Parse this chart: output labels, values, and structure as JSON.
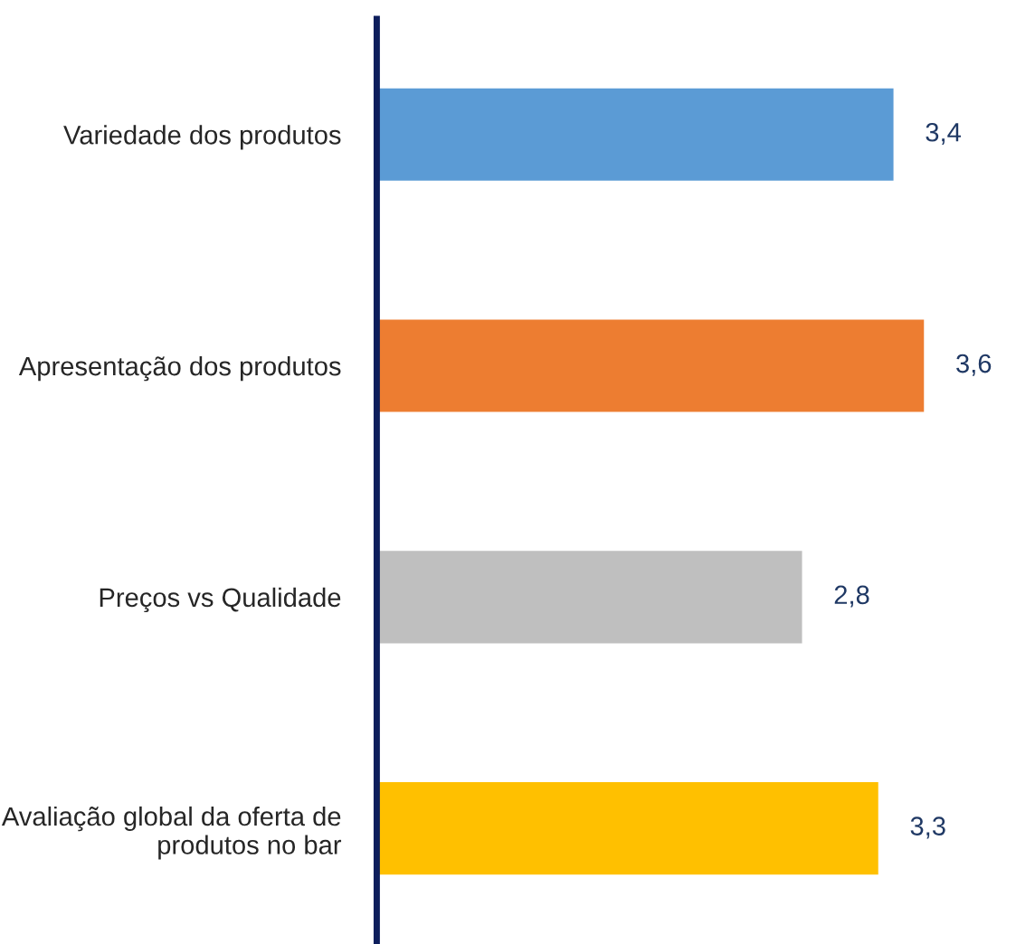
{
  "chart_data": {
    "type": "bar",
    "orientation": "horizontal",
    "categories": [
      "Variedade dos produtos",
      "Apresentação dos produtos",
      "Preços vs Qualidade",
      "Avaliação global da oferta de\nprodutos no bar"
    ],
    "values": [
      3.4,
      3.6,
      2.8,
      3.3
    ],
    "colors": [
      "#5b9bd5",
      "#ed7d31",
      "#bfbfbf",
      "#ffc000"
    ],
    "value_labels": [
      "3,4",
      "3,6",
      "2,8",
      "3,3"
    ],
    "grid": false,
    "legend": false
  }
}
